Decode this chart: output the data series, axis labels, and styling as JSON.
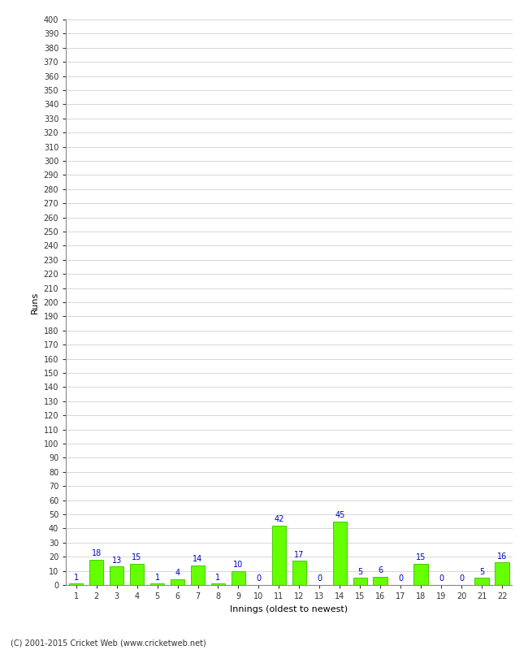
{
  "xlabel": "Innings (oldest to newest)",
  "ylabel": "Runs",
  "categories": [
    "1",
    "2",
    "3",
    "4",
    "5",
    "6",
    "7",
    "8",
    "9",
    "10",
    "11",
    "12",
    "13",
    "14",
    "15",
    "16",
    "17",
    "18",
    "19",
    "20",
    "21",
    "22"
  ],
  "values": [
    1,
    18,
    13,
    15,
    1,
    4,
    14,
    1,
    10,
    0,
    42,
    17,
    0,
    45,
    5,
    6,
    0,
    15,
    0,
    0,
    5,
    16
  ],
  "bar_color": "#66ff00",
  "bar_edge_color": "#44cc00",
  "label_color": "#0000cc",
  "ylim": [
    0,
    400
  ],
  "ytick_step": 10,
  "background_color": "#ffffff",
  "grid_color": "#c8c8c8",
  "footer": "(C) 2001-2015 Cricket Web (www.cricketweb.net)",
  "label_fontsize": 7,
  "tick_fontsize": 7,
  "axis_label_fontsize": 8,
  "footer_fontsize": 7
}
